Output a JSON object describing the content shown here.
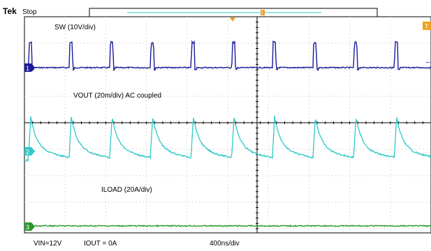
{
  "header": {
    "brand": "Tek",
    "run_state": "Stop",
    "trigger_marker": "T"
  },
  "annotations": {
    "sw": "SW (10V/div)",
    "vout": "VOUT (20m/div) AC coupled",
    "iload": "ILOAD (20A/div)"
  },
  "footer": {
    "vin": "VIN=12V",
    "iout": "IOUT = 0A",
    "timebase": "400ns/div"
  },
  "channel_markers": [
    "1",
    "2",
    "3"
  ],
  "colors": {
    "ch1": "#1a1a9c",
    "ch2": "#30c8c8",
    "ch3": "#2a9a2a",
    "trigger": "#f0a020",
    "grid": "#bfbfbf"
  },
  "chart_data": {
    "type": "line",
    "grid": true,
    "x_unit_per_div": "400ns",
    "x_divisions": 10,
    "pulse_period_div": 1.0,
    "pulse_start_offsets_div": [
      0.1,
      1.1,
      2.1,
      3.1,
      4.1,
      5.1,
      6.1,
      7.1,
      8.1,
      9.1
    ],
    "series": [
      {
        "name": "SW (10V/div)",
        "color": "#1a1a9c",
        "baseline_div": 0.0,
        "pulse_amplitude_div": 0.95
      },
      {
        "name": "VOUT (20m/div) AC coupled",
        "color": "#30c8c8",
        "baseline_div": -0.4,
        "pulse_amplitude_div": 1.3
      },
      {
        "name": "ILOAD (20A/div)",
        "color": "#2a9a2a",
        "baseline_div": 0.0,
        "pulse_amplitude_div": 0.0
      }
    ]
  }
}
